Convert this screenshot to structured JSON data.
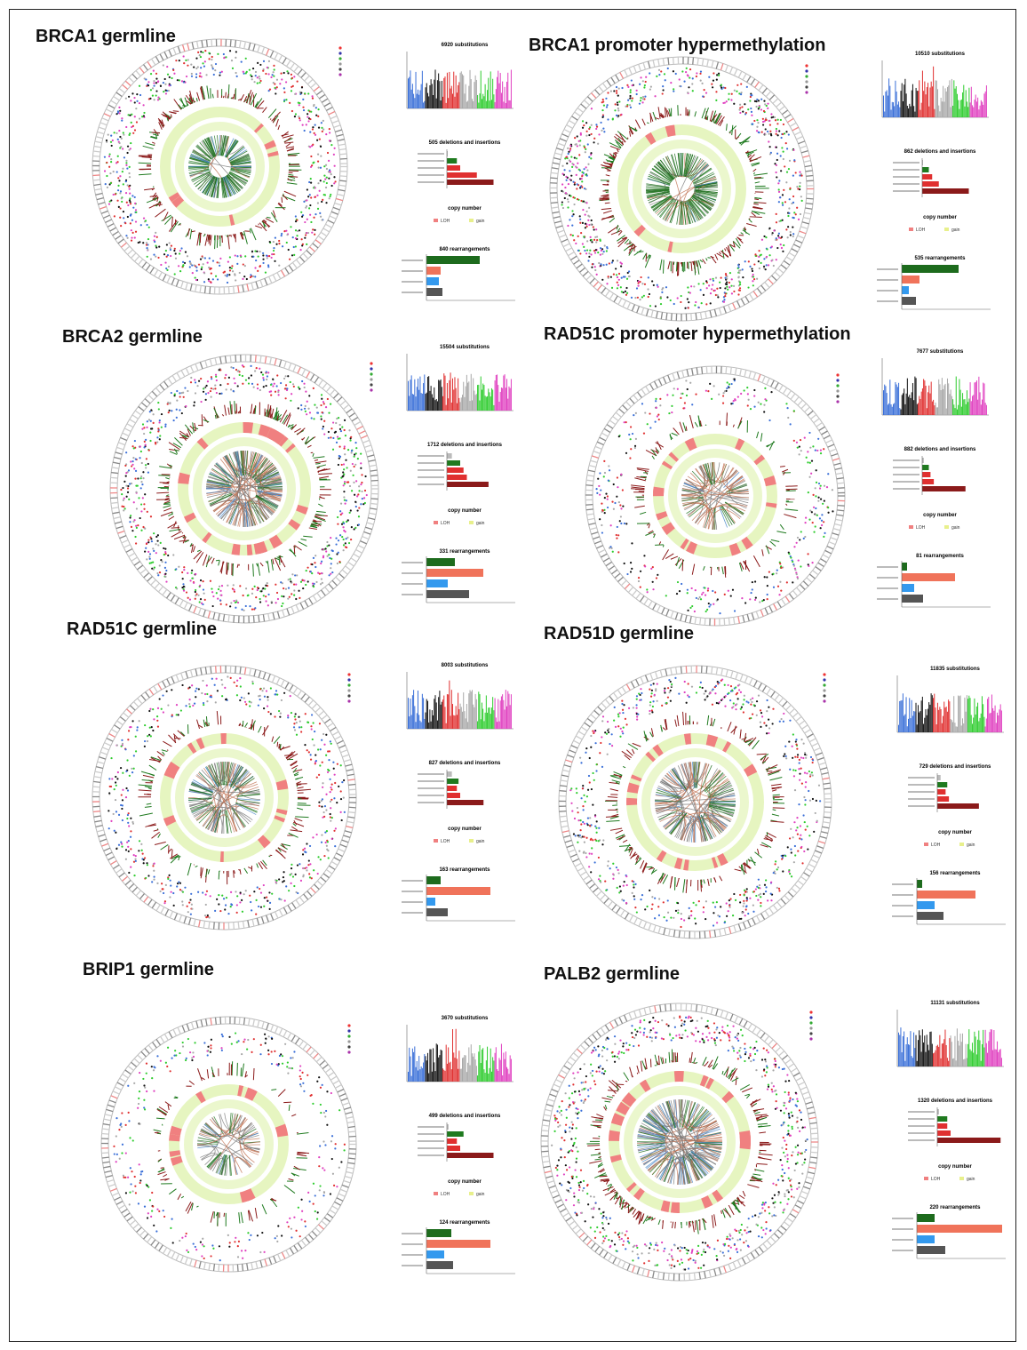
{
  "colors": {
    "frame": "#222222",
    "del_pink": "#f08080",
    "dark_red": "#8b1a1a",
    "lime": "#e6f5c0",
    "green": "#1f7a1f",
    "red": "#e03030",
    "blue": "#3a6fd8",
    "black": "#111111",
    "grey": "#a8a8a8",
    "bright_green": "#2ecc2e",
    "pink": "#e040c0",
    "salmon": "#f0735a",
    "bar_blue": "#3399ee",
    "bar_grey": "#555555",
    "bar_green": "#1d6b1d"
  },
  "panels": [
    {
      "title": "BRCA1 germline",
      "subs_label": "6920 substitutions",
      "indel_label": "505 deletions and insertions",
      "cn_label": "copy number",
      "cn_legend": [
        "LOH",
        "gain"
      ],
      "rearr_label": "840 rearrangements",
      "indel_values": [
        0,
        6,
        8,
        18,
        28
      ],
      "rearr_values": [
        30,
        8,
        7,
        9
      ]
    },
    {
      "title": "BRCA1 promoter hypermethylation",
      "subs_label": "10510 substitutions",
      "indel_label": "862 deletions and insertions",
      "cn_label": "copy number",
      "cn_legend": [
        "LOH",
        "gain"
      ],
      "rearr_label": "535 rearrangements",
      "indel_values": [
        0,
        4,
        6,
        10,
        28
      ],
      "rearr_values": [
        32,
        10,
        4,
        8
      ]
    },
    {
      "title": "BRCA2 germline",
      "subs_label": "15504 substitutions",
      "indel_label": "1712 deletions and insertions",
      "cn_label": "copy number",
      "cn_legend": [
        "LOH",
        "gain"
      ],
      "rearr_label": "331 rearrangements",
      "indel_values": [
        3,
        8,
        10,
        12,
        25
      ],
      "rearr_values": [
        16,
        32,
        12,
        24
      ]
    },
    {
      "title": "RAD51C promoter hypermethylation",
      "subs_label": "7677 substitutions",
      "indel_label": "882 deletions and insertions",
      "cn_label": "copy number",
      "cn_legend": [
        "LOH",
        "gain"
      ],
      "rearr_label": "81 rearrangements",
      "indel_values": [
        1,
        4,
        5,
        7,
        26
      ],
      "rearr_values": [
        3,
        30,
        7,
        12
      ]
    },
    {
      "title": "RAD51C germline",
      "subs_label": "8003 substitutions",
      "indel_label": "827 deletions and insertions",
      "cn_label": "copy number",
      "cn_legend": [
        "LOH",
        "gain"
      ],
      "rearr_label": "163 rearrangements",
      "indel_values": [
        3,
        7,
        6,
        8,
        22
      ],
      "rearr_values": [
        8,
        36,
        5,
        12
      ]
    },
    {
      "title": "RAD51D germline",
      "subs_label": "11835 substitutions",
      "indel_label": "729 deletions and insertions",
      "cn_label": "copy number",
      "cn_legend": [
        "LOH",
        "gain"
      ],
      "rearr_label": "156 rearrangements",
      "indel_values": [
        2,
        6,
        5,
        7,
        25
      ],
      "rearr_values": [
        3,
        33,
        10,
        15
      ]
    },
    {
      "title": "BRIP1 germline",
      "subs_label": "3670 substitutions",
      "indel_label": "499 deletions and insertions",
      "cn_label": "copy number",
      "cn_legend": [
        "LOH",
        "gain"
      ],
      "rearr_label": "124 rearrangements",
      "indel_values": [
        1,
        10,
        6,
        8,
        28
      ],
      "rearr_values": [
        14,
        36,
        10,
        15
      ]
    },
    {
      "title": "PALB2 germline",
      "subs_label": "11131 substitutions",
      "indel_label": "1320 deletions and insertions",
      "cn_label": "copy number",
      "cn_legend": [
        "LOH",
        "gain"
      ],
      "rearr_label": "220 rearrangements",
      "indel_values": [
        1,
        6,
        6,
        8,
        38
      ],
      "rearr_values": [
        10,
        48,
        10,
        16
      ]
    }
  ]
}
